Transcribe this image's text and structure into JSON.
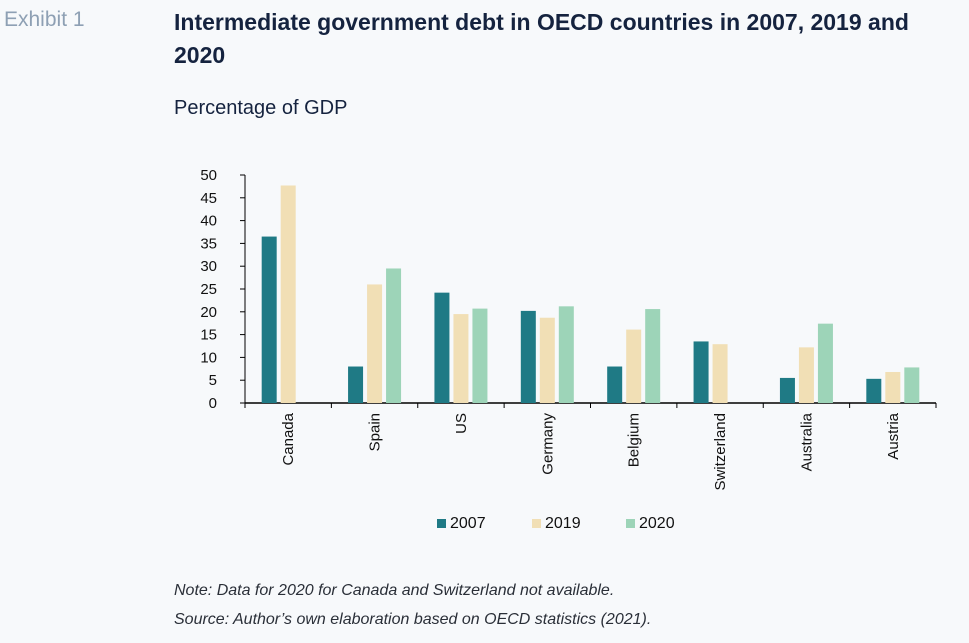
{
  "header": {
    "exhibit": "Exhibit 1",
    "title": "Intermediate government debt in OECD countries in 2007, 2019 and 2020",
    "subtitle": "Percentage of GDP"
  },
  "footer": {
    "note": "Note: Data for 2020 for Canada and Switzerland not available.",
    "source": "Source: Author’s own elaboration based on OECD statistics (2021)."
  },
  "chart_data": {
    "type": "bar",
    "categories": [
      "Canada",
      "Spain",
      "US",
      "Germany",
      "Belgium",
      "Switzerland",
      "Australia",
      "Austria"
    ],
    "series": [
      {
        "name": "2007",
        "color": "#1f7a85",
        "values": [
          36.5,
          8.0,
          24.2,
          20.2,
          8.0,
          13.5,
          5.5,
          5.3
        ]
      },
      {
        "name": "2019",
        "color": "#f1dfb5",
        "values": [
          47.7,
          26.0,
          19.5,
          18.7,
          16.1,
          12.9,
          12.2,
          6.8
        ]
      },
      {
        "name": "2020",
        "color": "#9dd4b8",
        "values": [
          null,
          29.5,
          20.7,
          21.2,
          20.6,
          null,
          17.4,
          7.8
        ]
      }
    ],
    "ylim": [
      0,
      50
    ],
    "yticks": [
      0,
      5,
      10,
      15,
      20,
      25,
      30,
      35,
      40,
      45,
      50
    ],
    "legend": "bottom",
    "grid": false
  }
}
